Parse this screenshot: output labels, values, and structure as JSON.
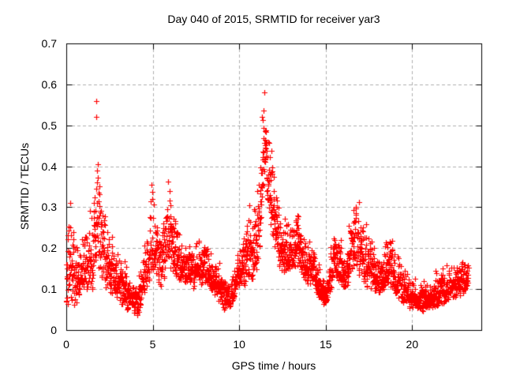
{
  "page": {
    "background_color": "#ffffff",
    "text_color": "#000000"
  },
  "chart_data": {
    "type": "scatter",
    "title": "Day 040 of 2015, SRMTID for receiver yar3",
    "xlabel": "GPS time / hours",
    "ylabel": "SRMTID / TECUs",
    "xlim": [
      0,
      24
    ],
    "ylim": [
      0,
      0.7
    ],
    "xticks": {
      "values": [
        0,
        5,
        10,
        15,
        20
      ],
      "labels": [
        "0",
        "5",
        "10",
        "15",
        "20"
      ]
    },
    "yticks": {
      "values": [
        0,
        0.1,
        0.2,
        0.3,
        0.4,
        0.5,
        0.6,
        0.7
      ],
      "labels": [
        "0",
        "0.1",
        "0.2",
        "0.3",
        "0.4",
        "0.5",
        "0.6",
        "0.7"
      ]
    },
    "grid": {
      "show": true,
      "style": "dashed",
      "color": "#b0b0b0",
      "dash": [
        4,
        3
      ]
    },
    "frame": {
      "color": "#000000",
      "tick_length": 7,
      "ticks_mirrored": true
    },
    "legend": {
      "show": false
    },
    "series": [
      {
        "name": "SRMTID",
        "marker": "plus-icon",
        "marker_size": 7,
        "color": "#ff0000",
        "t_start": 0,
        "t_end": 23.25,
        "points_per_hour": 120,
        "seed": 42,
        "envelope_keypoints": [
          [
            0.0,
            0.05,
            0.32
          ],
          [
            0.25,
            0.07,
            0.31
          ],
          [
            0.5,
            0.06,
            0.24
          ],
          [
            0.75,
            0.07,
            0.22
          ],
          [
            1.0,
            0.09,
            0.26
          ],
          [
            1.25,
            0.1,
            0.28
          ],
          [
            1.5,
            0.1,
            0.33
          ],
          [
            1.65,
            0.13,
            0.4
          ],
          [
            1.8,
            0.15,
            0.47
          ],
          [
            1.95,
            0.14,
            0.44
          ],
          [
            2.1,
            0.12,
            0.35
          ],
          [
            2.3,
            0.1,
            0.28
          ],
          [
            2.6,
            0.09,
            0.24
          ],
          [
            2.9,
            0.08,
            0.21
          ],
          [
            3.2,
            0.06,
            0.19
          ],
          [
            3.5,
            0.05,
            0.17
          ],
          [
            3.8,
            0.04,
            0.13
          ],
          [
            4.1,
            0.03,
            0.12
          ],
          [
            4.4,
            0.08,
            0.2
          ],
          [
            4.7,
            0.11,
            0.28
          ],
          [
            4.95,
            0.14,
            0.42
          ],
          [
            5.15,
            0.12,
            0.32
          ],
          [
            5.4,
            0.1,
            0.24
          ],
          [
            5.7,
            0.13,
            0.32
          ],
          [
            5.95,
            0.16,
            0.41
          ],
          [
            6.15,
            0.14,
            0.34
          ],
          [
            6.4,
            0.12,
            0.27
          ],
          [
            6.7,
            0.12,
            0.23
          ],
          [
            7.0,
            0.11,
            0.22
          ],
          [
            7.3,
            0.1,
            0.2
          ],
          [
            7.6,
            0.11,
            0.24
          ],
          [
            7.9,
            0.11,
            0.25
          ],
          [
            8.2,
            0.1,
            0.21
          ],
          [
            8.5,
            0.09,
            0.19
          ],
          [
            8.8,
            0.07,
            0.17
          ],
          [
            9.1,
            0.05,
            0.14
          ],
          [
            9.4,
            0.05,
            0.13
          ],
          [
            9.7,
            0.08,
            0.16
          ],
          [
            10.0,
            0.1,
            0.2
          ],
          [
            10.3,
            0.11,
            0.28
          ],
          [
            10.55,
            0.13,
            0.38
          ],
          [
            10.8,
            0.12,
            0.31
          ],
          [
            11.0,
            0.14,
            0.35
          ],
          [
            11.2,
            0.2,
            0.45
          ],
          [
            11.4,
            0.3,
            0.6
          ],
          [
            11.55,
            0.33,
            0.63
          ],
          [
            11.7,
            0.28,
            0.52
          ],
          [
            11.9,
            0.24,
            0.46
          ],
          [
            12.1,
            0.18,
            0.39
          ],
          [
            12.35,
            0.15,
            0.31
          ],
          [
            12.6,
            0.14,
            0.28
          ],
          [
            12.85,
            0.15,
            0.3
          ],
          [
            13.1,
            0.14,
            0.28
          ],
          [
            13.4,
            0.16,
            0.3
          ],
          [
            13.7,
            0.13,
            0.26
          ],
          [
            14.0,
            0.11,
            0.22
          ],
          [
            14.3,
            0.1,
            0.2
          ],
          [
            14.6,
            0.08,
            0.18
          ],
          [
            14.9,
            0.06,
            0.15
          ],
          [
            15.2,
            0.08,
            0.18
          ],
          [
            15.5,
            0.11,
            0.26
          ],
          [
            15.8,
            0.11,
            0.24
          ],
          [
            16.1,
            0.1,
            0.21
          ],
          [
            16.4,
            0.12,
            0.28
          ],
          [
            16.7,
            0.14,
            0.34
          ],
          [
            16.95,
            0.13,
            0.31
          ],
          [
            17.2,
            0.11,
            0.27
          ],
          [
            17.5,
            0.1,
            0.25
          ],
          [
            17.8,
            0.09,
            0.22
          ],
          [
            18.1,
            0.09,
            0.21
          ],
          [
            18.4,
            0.1,
            0.23
          ],
          [
            18.7,
            0.11,
            0.27
          ],
          [
            19.0,
            0.08,
            0.2
          ],
          [
            19.3,
            0.07,
            0.17
          ],
          [
            19.6,
            0.06,
            0.15
          ],
          [
            19.9,
            0.05,
            0.14
          ],
          [
            20.2,
            0.05,
            0.13
          ],
          [
            20.5,
            0.04,
            0.12
          ],
          [
            20.8,
            0.05,
            0.12
          ],
          [
            21.1,
            0.05,
            0.13
          ],
          [
            21.4,
            0.06,
            0.15
          ],
          [
            21.7,
            0.06,
            0.16
          ],
          [
            22.0,
            0.07,
            0.16
          ],
          [
            22.3,
            0.08,
            0.16
          ],
          [
            22.6,
            0.08,
            0.17
          ],
          [
            22.9,
            0.09,
            0.19
          ],
          [
            23.25,
            0.1,
            0.18
          ]
        ],
        "outliers": [
          [
            1.72,
            0.56
          ],
          [
            1.75,
            0.52
          ]
        ]
      }
    ]
  }
}
